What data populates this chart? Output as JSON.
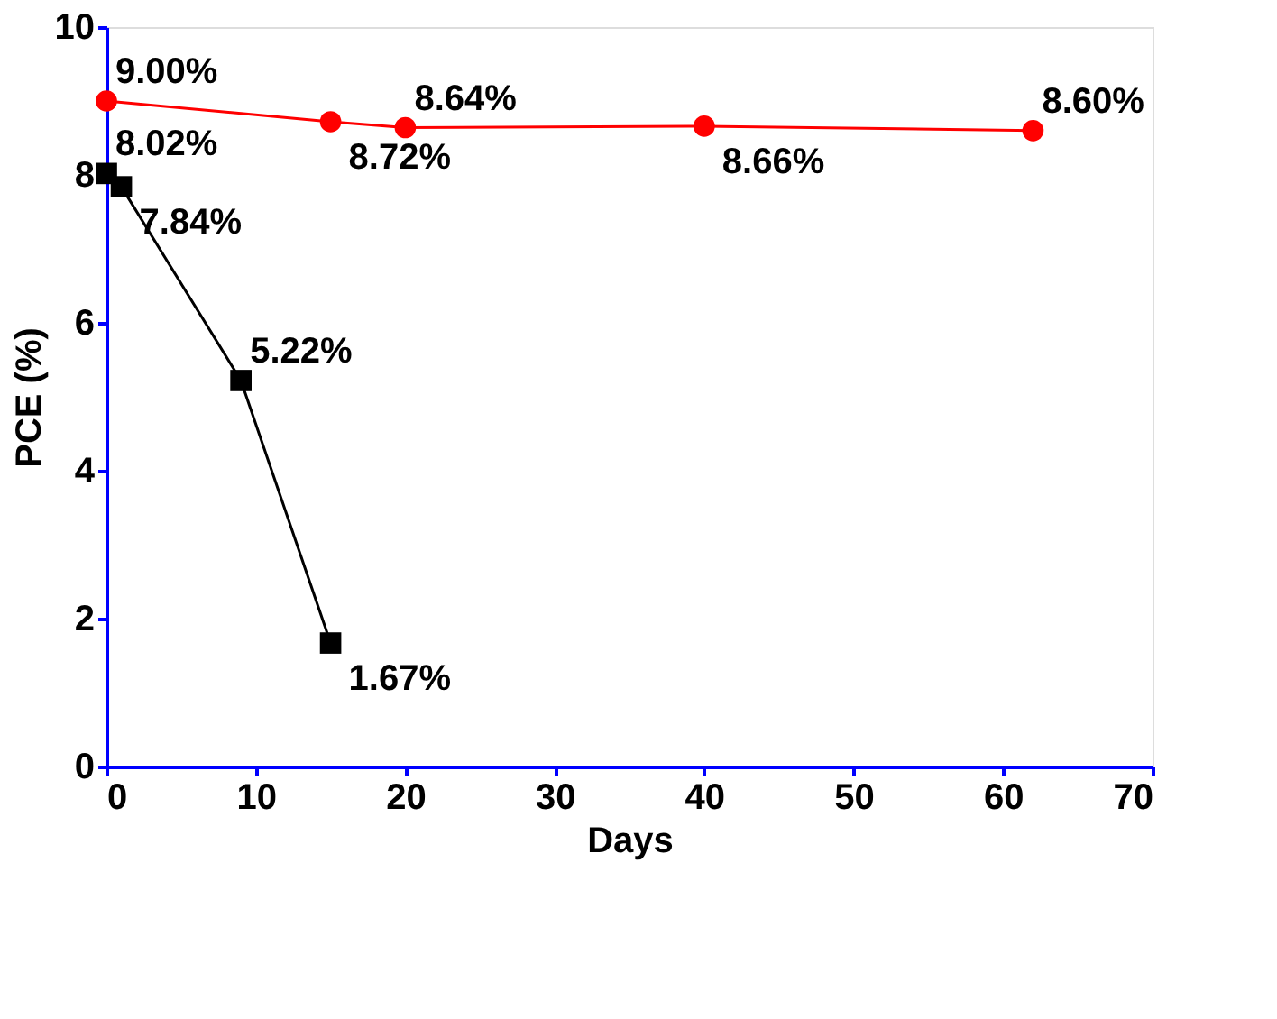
{
  "chart_data": {
    "type": "line",
    "xlabel": "Days",
    "ylabel": "PCE (%)",
    "xlim": [
      0,
      70
    ],
    "xticks": [
      0,
      10,
      20,
      30,
      40,
      50,
      60,
      70
    ],
    "ylim": [
      0,
      10
    ],
    "yticks": [
      0,
      2,
      4,
      6,
      8,
      10
    ],
    "grid": false,
    "legend": false,
    "line_style": "solid",
    "series": [
      {
        "color": "#ff0000",
        "marker": "circle",
        "x": [
          0,
          15,
          20,
          40,
          62
        ],
        "values": [
          9.0,
          8.72,
          8.64,
          8.66,
          8.6
        ],
        "value_labels": [
          "9.00%",
          "8.72%",
          "8.64%",
          "8.66%",
          "8.60%"
        ]
      },
      {
        "color": "#000000",
        "marker": "square",
        "x": [
          0,
          1,
          9,
          15
        ],
        "values": [
          8.02,
          7.84,
          5.22,
          1.67
        ],
        "value_labels": [
          "8.02%",
          "7.84%",
          "5.22%",
          "1.67%"
        ]
      }
    ]
  }
}
